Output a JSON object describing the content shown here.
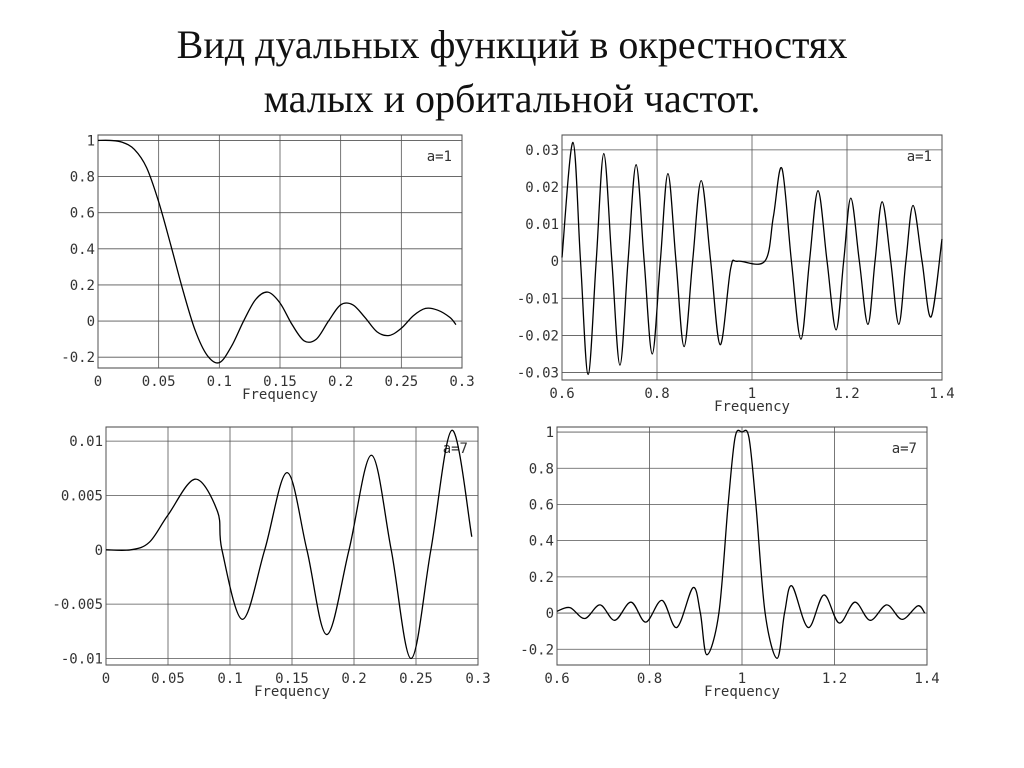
{
  "slide_title": [
    "Вид дуальных функций в окрестностях",
    "малых и орбитальной частот."
  ],
  "chart_data": [
    {
      "type": "line",
      "annotation": "a=1",
      "xlabel": "Frequency",
      "color": "#000000",
      "grid": true,
      "xlim": [
        0,
        0.3
      ],
      "ylim": [
        -0.26,
        1.03
      ],
      "xticks": [
        0,
        0.05,
        0.1,
        0.15,
        0.2,
        0.25,
        0.3
      ],
      "yticks": [
        1,
        0.8,
        0.6,
        0.4,
        0.2,
        0,
        -0.2
      ],
      "x": [
        0,
        0.01,
        0.02,
        0.03,
        0.04,
        0.05,
        0.06,
        0.07,
        0.08,
        0.09,
        0.1,
        0.11,
        0.12,
        0.13,
        0.14,
        0.15,
        0.16,
        0.17,
        0.18,
        0.19,
        0.2,
        0.21,
        0.22,
        0.23,
        0.24,
        0.25,
        0.26,
        0.27,
        0.28,
        0.29,
        0.295
      ],
      "values": [
        1,
        1,
        0.99,
        0.95,
        0.85,
        0.66,
        0.42,
        0.17,
        -0.05,
        -0.19,
        -0.23,
        -0.14,
        0.0,
        0.12,
        0.16,
        0.1,
        -0.02,
        -0.11,
        -0.1,
        0.0,
        0.09,
        0.09,
        0.02,
        -0.06,
        -0.08,
        -0.04,
        0.03,
        0.07,
        0.06,
        0.02,
        -0.02
      ]
    },
    {
      "type": "line",
      "annotation": "a=1",
      "xlabel": "Frequency",
      "color": "#000000",
      "grid": true,
      "xlim": [
        0.6,
        1.4
      ],
      "ylim": [
        -0.032,
        0.034
      ],
      "xticks": [
        0.6,
        0.8,
        1,
        1.2,
        1.4
      ],
      "yticks": [
        0.03,
        0.02,
        0.01,
        0,
        -0.01,
        -0.02,
        -0.03
      ],
      "x": [
        0.6,
        0.623,
        0.639,
        0.655,
        0.672,
        0.688,
        0.705,
        0.722,
        0.739,
        0.756,
        0.773,
        0.79,
        0.807,
        0.823,
        0.84,
        0.857,
        0.875,
        0.893,
        0.913,
        0.933,
        0.955,
        0.97,
        1.027,
        1.045,
        1.063,
        1.083,
        1.103,
        1.121,
        1.139,
        1.158,
        1.177,
        1.193,
        1.208,
        1.226,
        1.244,
        1.259,
        1.274,
        1.292,
        1.309,
        1.324,
        1.339,
        1.358,
        1.377,
        1.4
      ],
      "values": [
        0.001,
        0.032,
        0,
        -0.0305,
        0,
        0.029,
        0,
        -0.028,
        0,
        0.026,
        0,
        -0.025,
        0,
        0.0236,
        0,
        -0.023,
        0,
        0.0217,
        0,
        -0.0225,
        -0.002,
        0,
        0,
        0.012,
        0.025,
        0,
        -0.021,
        0,
        0.019,
        0,
        -0.0185,
        0,
        0.017,
        0,
        -0.017,
        0,
        0.016,
        0,
        -0.017,
        0,
        0.015,
        0,
        -0.015,
        0.006
      ]
    },
    {
      "type": "line",
      "annotation": "a=7",
      "xlabel": "Frequency",
      "color": "#000000",
      "grid": true,
      "xlim": [
        0,
        0.3
      ],
      "ylim": [
        -0.0106,
        0.0113
      ],
      "xticks": [
        0,
        0.05,
        0.1,
        0.15,
        0.2,
        0.25,
        0.3
      ],
      "yticks": [
        0.01,
        0.005,
        0,
        -0.005,
        -0.01
      ],
      "x": [
        0,
        0.02,
        0.035,
        0.05,
        0.072,
        0.09,
        0.0935,
        0.11,
        0.128,
        0.146,
        0.162,
        0.178,
        0.196,
        0.214,
        0.23,
        0.246,
        0.262,
        0.279,
        0.295
      ],
      "values": [
        0,
        0,
        0.0007,
        0.0032,
        0.0065,
        0.0035,
        0,
        -0.0064,
        0,
        0.0071,
        0,
        -0.0078,
        0,
        0.0087,
        0,
        -0.01,
        0,
        0.011,
        0.0012
      ]
    },
    {
      "type": "line",
      "annotation": "a=7",
      "xlabel": "Frequency",
      "color": "#000000",
      "grid": true,
      "xlim": [
        0.6,
        1.4
      ],
      "ylim": [
        -0.287,
        1.028
      ],
      "xticks": [
        0.6,
        0.8,
        1,
        1.2,
        1.4
      ],
      "yticks": [
        1,
        0.8,
        0.6,
        0.4,
        0.2,
        0,
        -0.2
      ],
      "x": [
        0.6,
        0.628,
        0.66,
        0.693,
        0.725,
        0.76,
        0.792,
        0.827,
        0.859,
        0.894,
        0.91,
        0.924,
        0.95,
        0.97,
        0.985,
        1.0,
        1.015,
        1.03,
        1.05,
        1.076,
        1.092,
        1.108,
        1.143,
        1.177,
        1.21,
        1.244,
        1.277,
        1.313,
        1.346,
        1.38,
        1.395
      ],
      "values": [
        0.01,
        0.03,
        -0.03,
        0.045,
        -0.04,
        0.06,
        -0.05,
        0.07,
        -0.08,
        0.14,
        0,
        -0.23,
        0,
        0.6,
        0.97,
        1,
        0.97,
        0.6,
        0,
        -0.25,
        0,
        0.15,
        -0.08,
        0.1,
        -0.055,
        0.06,
        -0.04,
        0.045,
        -0.035,
        0.04,
        0
      ]
    }
  ]
}
